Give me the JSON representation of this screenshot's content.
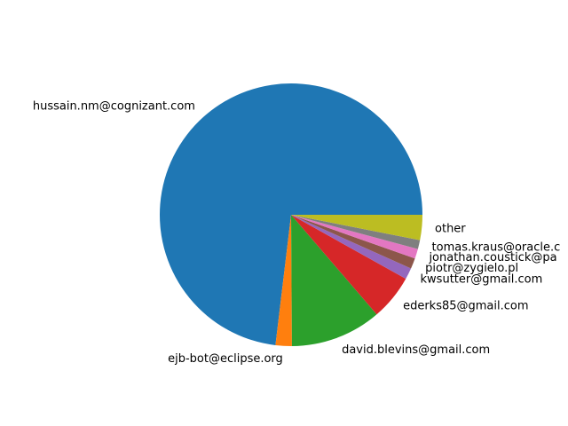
{
  "chart_data": {
    "type": "pie",
    "title": "",
    "start_angle_deg": 0,
    "direction": "counterclockwise",
    "slices": [
      {
        "label": "hussain.nm@cognizant.com",
        "value": 73.1,
        "color": "#1f77b4"
      },
      {
        "label": "ejb-bot@eclipse.org",
        "value": 2.0,
        "color": "#ff7f0e"
      },
      {
        "label": "david.blevins@gmail.com",
        "value": 11.2,
        "color": "#2ca02c"
      },
      {
        "label": "ederks85@gmail.com",
        "value": 5.6,
        "color": "#d62728"
      },
      {
        "label": "kwsutter@gmail.com",
        "value": 1.4,
        "color": "#9467bd"
      },
      {
        "label": "piotr@zygielo.pl",
        "value": 1.3,
        "color": "#8c564b"
      },
      {
        "label": "jonathan.coustick@pa",
        "value": 1.2,
        "color": "#e377c2"
      },
      {
        "label": "tomas.kraus@oracle.c",
        "value": 1.1,
        "color": "#7f7f7f"
      },
      {
        "label": "other",
        "value": 3.1,
        "color": "#bcbd22"
      }
    ]
  }
}
